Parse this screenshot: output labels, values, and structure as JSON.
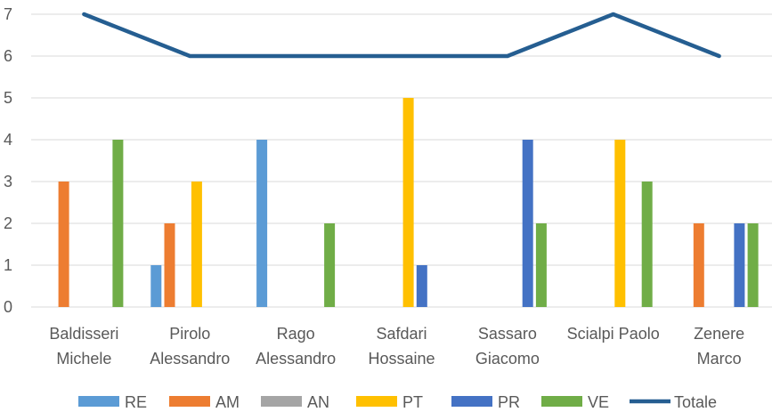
{
  "chart_data": {
    "type": "bar",
    "categories": [
      [
        "Baldisseri",
        "Michele"
      ],
      [
        "Pirolo",
        "Alessandro"
      ],
      [
        "Rago",
        "Alessandro"
      ],
      [
        "Safdari",
        "Hossaine"
      ],
      [
        "Sassaro",
        "Giacomo"
      ],
      [
        "Scialpi Paolo"
      ],
      [
        "Zenere",
        "Marco"
      ]
    ],
    "series": [
      {
        "name": "RE",
        "color": "#5B9BD5",
        "values": [
          0,
          1,
          4,
          0,
          0,
          0,
          0
        ]
      },
      {
        "name": "AM",
        "color": "#ED7D31",
        "values": [
          3,
          2,
          0,
          0,
          0,
          0,
          2
        ]
      },
      {
        "name": "AN",
        "color": "#A5A5A5",
        "values": [
          0,
          0,
          0,
          0,
          0,
          0,
          0
        ]
      },
      {
        "name": "PT",
        "color": "#FFC000",
        "values": [
          0,
          3,
          0,
          5,
          0,
          4,
          0
        ]
      },
      {
        "name": "PR",
        "color": "#4472C4",
        "values": [
          0,
          0,
          0,
          1,
          4,
          0,
          2
        ]
      },
      {
        "name": "VE",
        "color": "#70AD47",
        "values": [
          4,
          0,
          2,
          0,
          2,
          3,
          2
        ]
      }
    ],
    "line_series": {
      "name": "Totale",
      "color": "#255E91",
      "values": [
        7,
        6,
        6,
        6,
        6,
        7,
        6
      ]
    },
    "ylim": [
      0,
      7
    ],
    "yticks": [
      "0",
      "1",
      "2",
      "3",
      "4",
      "5",
      "6",
      "7"
    ],
    "grid": true,
    "legend_position": "bottom",
    "title": "",
    "xlabel": "",
    "ylabel": ""
  }
}
